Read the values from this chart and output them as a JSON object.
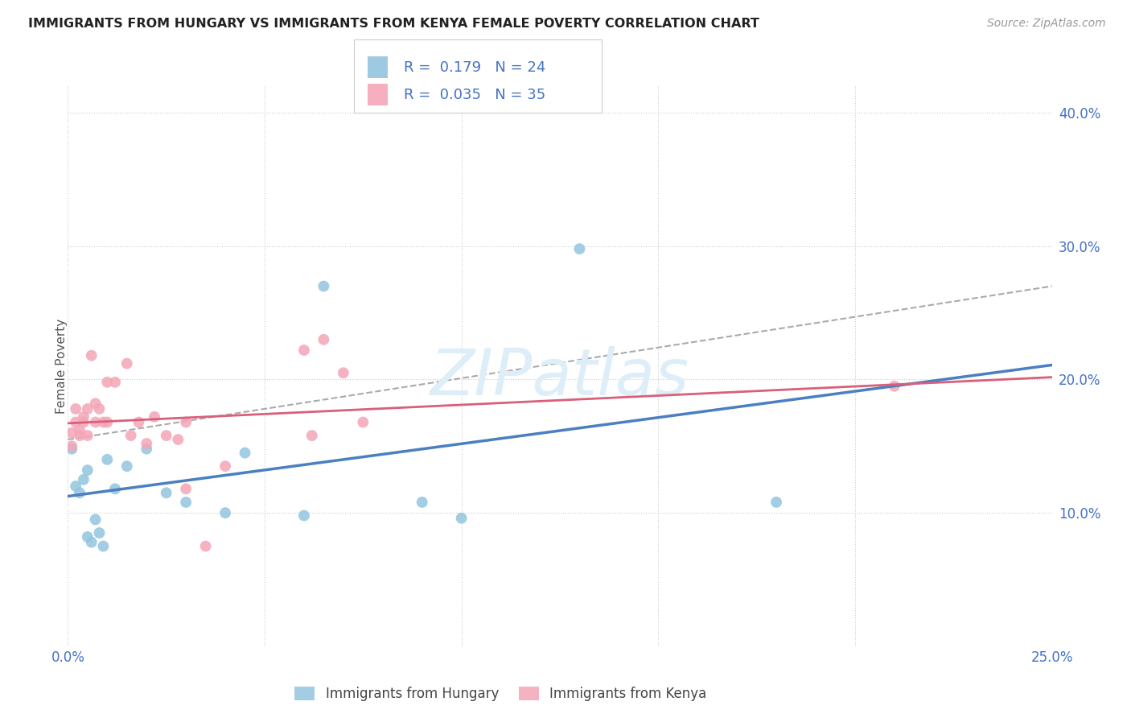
{
  "title": "IMMIGRANTS FROM HUNGARY VS IMMIGRANTS FROM KENYA FEMALE POVERTY CORRELATION CHART",
  "source": "Source: ZipAtlas.com",
  "ylabel": "Female Poverty",
  "xlim": [
    0,
    0.25
  ],
  "ylim": [
    0,
    0.42
  ],
  "xticks": [
    0.0,
    0.05,
    0.1,
    0.15,
    0.2,
    0.25
  ],
  "yticks": [
    0.0,
    0.1,
    0.2,
    0.3,
    0.4
  ],
  "ytick_labels": [
    "",
    "10.0%",
    "20.0%",
    "30.0%",
    "40.0%"
  ],
  "hungary_color": "#92c5de",
  "kenya_color": "#f4a6b8",
  "hungary_line_color": "#4a7fc1",
  "kenya_line_color": "#d95f7a",
  "dash_color": "#aaaaaa",
  "hungary_R": 0.179,
  "hungary_N": 24,
  "kenya_R": 0.035,
  "kenya_N": 35,
  "hungary_x": [
    0.001,
    0.002,
    0.003,
    0.004,
    0.005,
    0.005,
    0.006,
    0.007,
    0.008,
    0.009,
    0.01,
    0.012,
    0.015,
    0.02,
    0.025,
    0.03,
    0.04,
    0.045,
    0.06,
    0.065,
    0.09,
    0.1,
    0.13,
    0.18
  ],
  "hungary_y": [
    0.148,
    0.12,
    0.115,
    0.125,
    0.132,
    0.082,
    0.078,
    0.095,
    0.085,
    0.075,
    0.14,
    0.118,
    0.135,
    0.148,
    0.115,
    0.108,
    0.1,
    0.145,
    0.098,
    0.27,
    0.108,
    0.096,
    0.298,
    0.108
  ],
  "kenya_x": [
    0.001,
    0.001,
    0.002,
    0.002,
    0.003,
    0.003,
    0.004,
    0.004,
    0.005,
    0.005,
    0.006,
    0.007,
    0.007,
    0.008,
    0.009,
    0.01,
    0.01,
    0.012,
    0.015,
    0.016,
    0.018,
    0.02,
    0.022,
    0.025,
    0.028,
    0.03,
    0.03,
    0.035,
    0.04,
    0.06,
    0.062,
    0.065,
    0.07,
    0.075,
    0.21
  ],
  "kenya_y": [
    0.16,
    0.15,
    0.168,
    0.178,
    0.158,
    0.162,
    0.168,
    0.172,
    0.158,
    0.178,
    0.218,
    0.168,
    0.182,
    0.178,
    0.168,
    0.198,
    0.168,
    0.198,
    0.212,
    0.158,
    0.168,
    0.152,
    0.172,
    0.158,
    0.155,
    0.118,
    0.168,
    0.075,
    0.135,
    0.222,
    0.158,
    0.23,
    0.205,
    0.168,
    0.195
  ],
  "watermark_text": "ZIPatlas",
  "bottom_legend_labels": [
    "Immigrants from Hungary",
    "Immigrants from Kenya"
  ]
}
